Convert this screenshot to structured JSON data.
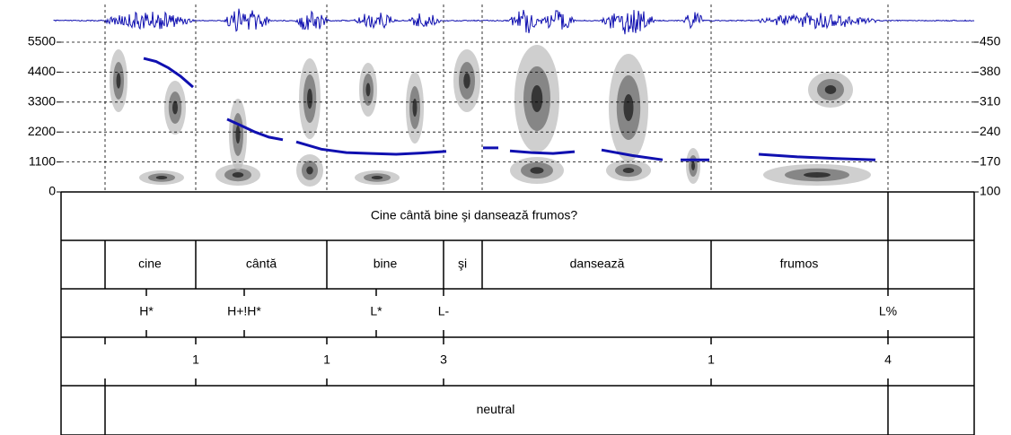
{
  "spectrogram": {
    "left_ticks": [
      0,
      1100,
      2200,
      3300,
      4400,
      5500
    ],
    "right_ticks": [
      100,
      170,
      240,
      310,
      380,
      450
    ],
    "pitch_segments": [
      [
        412,
        405,
        390,
        370,
        345
      ],
      [
        270,
        255,
        240,
        228,
        222
      ],
      [
        217,
        200,
        192,
        190,
        188,
        191,
        195
      ],
      [
        203,
        203
      ],
      [
        196,
        192,
        190,
        194
      ],
      [
        198,
        185,
        175
      ],
      [
        175,
        175
      ],
      [
        188,
        182,
        178,
        175
      ]
    ]
  },
  "tiers": [
    {
      "intervals": [
        "Cine cântă bine şi dansează frumos?"
      ]
    },
    {
      "intervals": [
        "cine",
        "cântă",
        "bine",
        "şi",
        "dansează",
        "frumos"
      ]
    },
    {
      "points": [
        "H*",
        "H+!H*",
        "L*",
        "L-",
        "L%"
      ]
    },
    {
      "points": [
        "1",
        "1",
        "3",
        "1",
        "4"
      ]
    },
    {
      "intervals": [
        "neutral"
      ]
    }
  ]
}
